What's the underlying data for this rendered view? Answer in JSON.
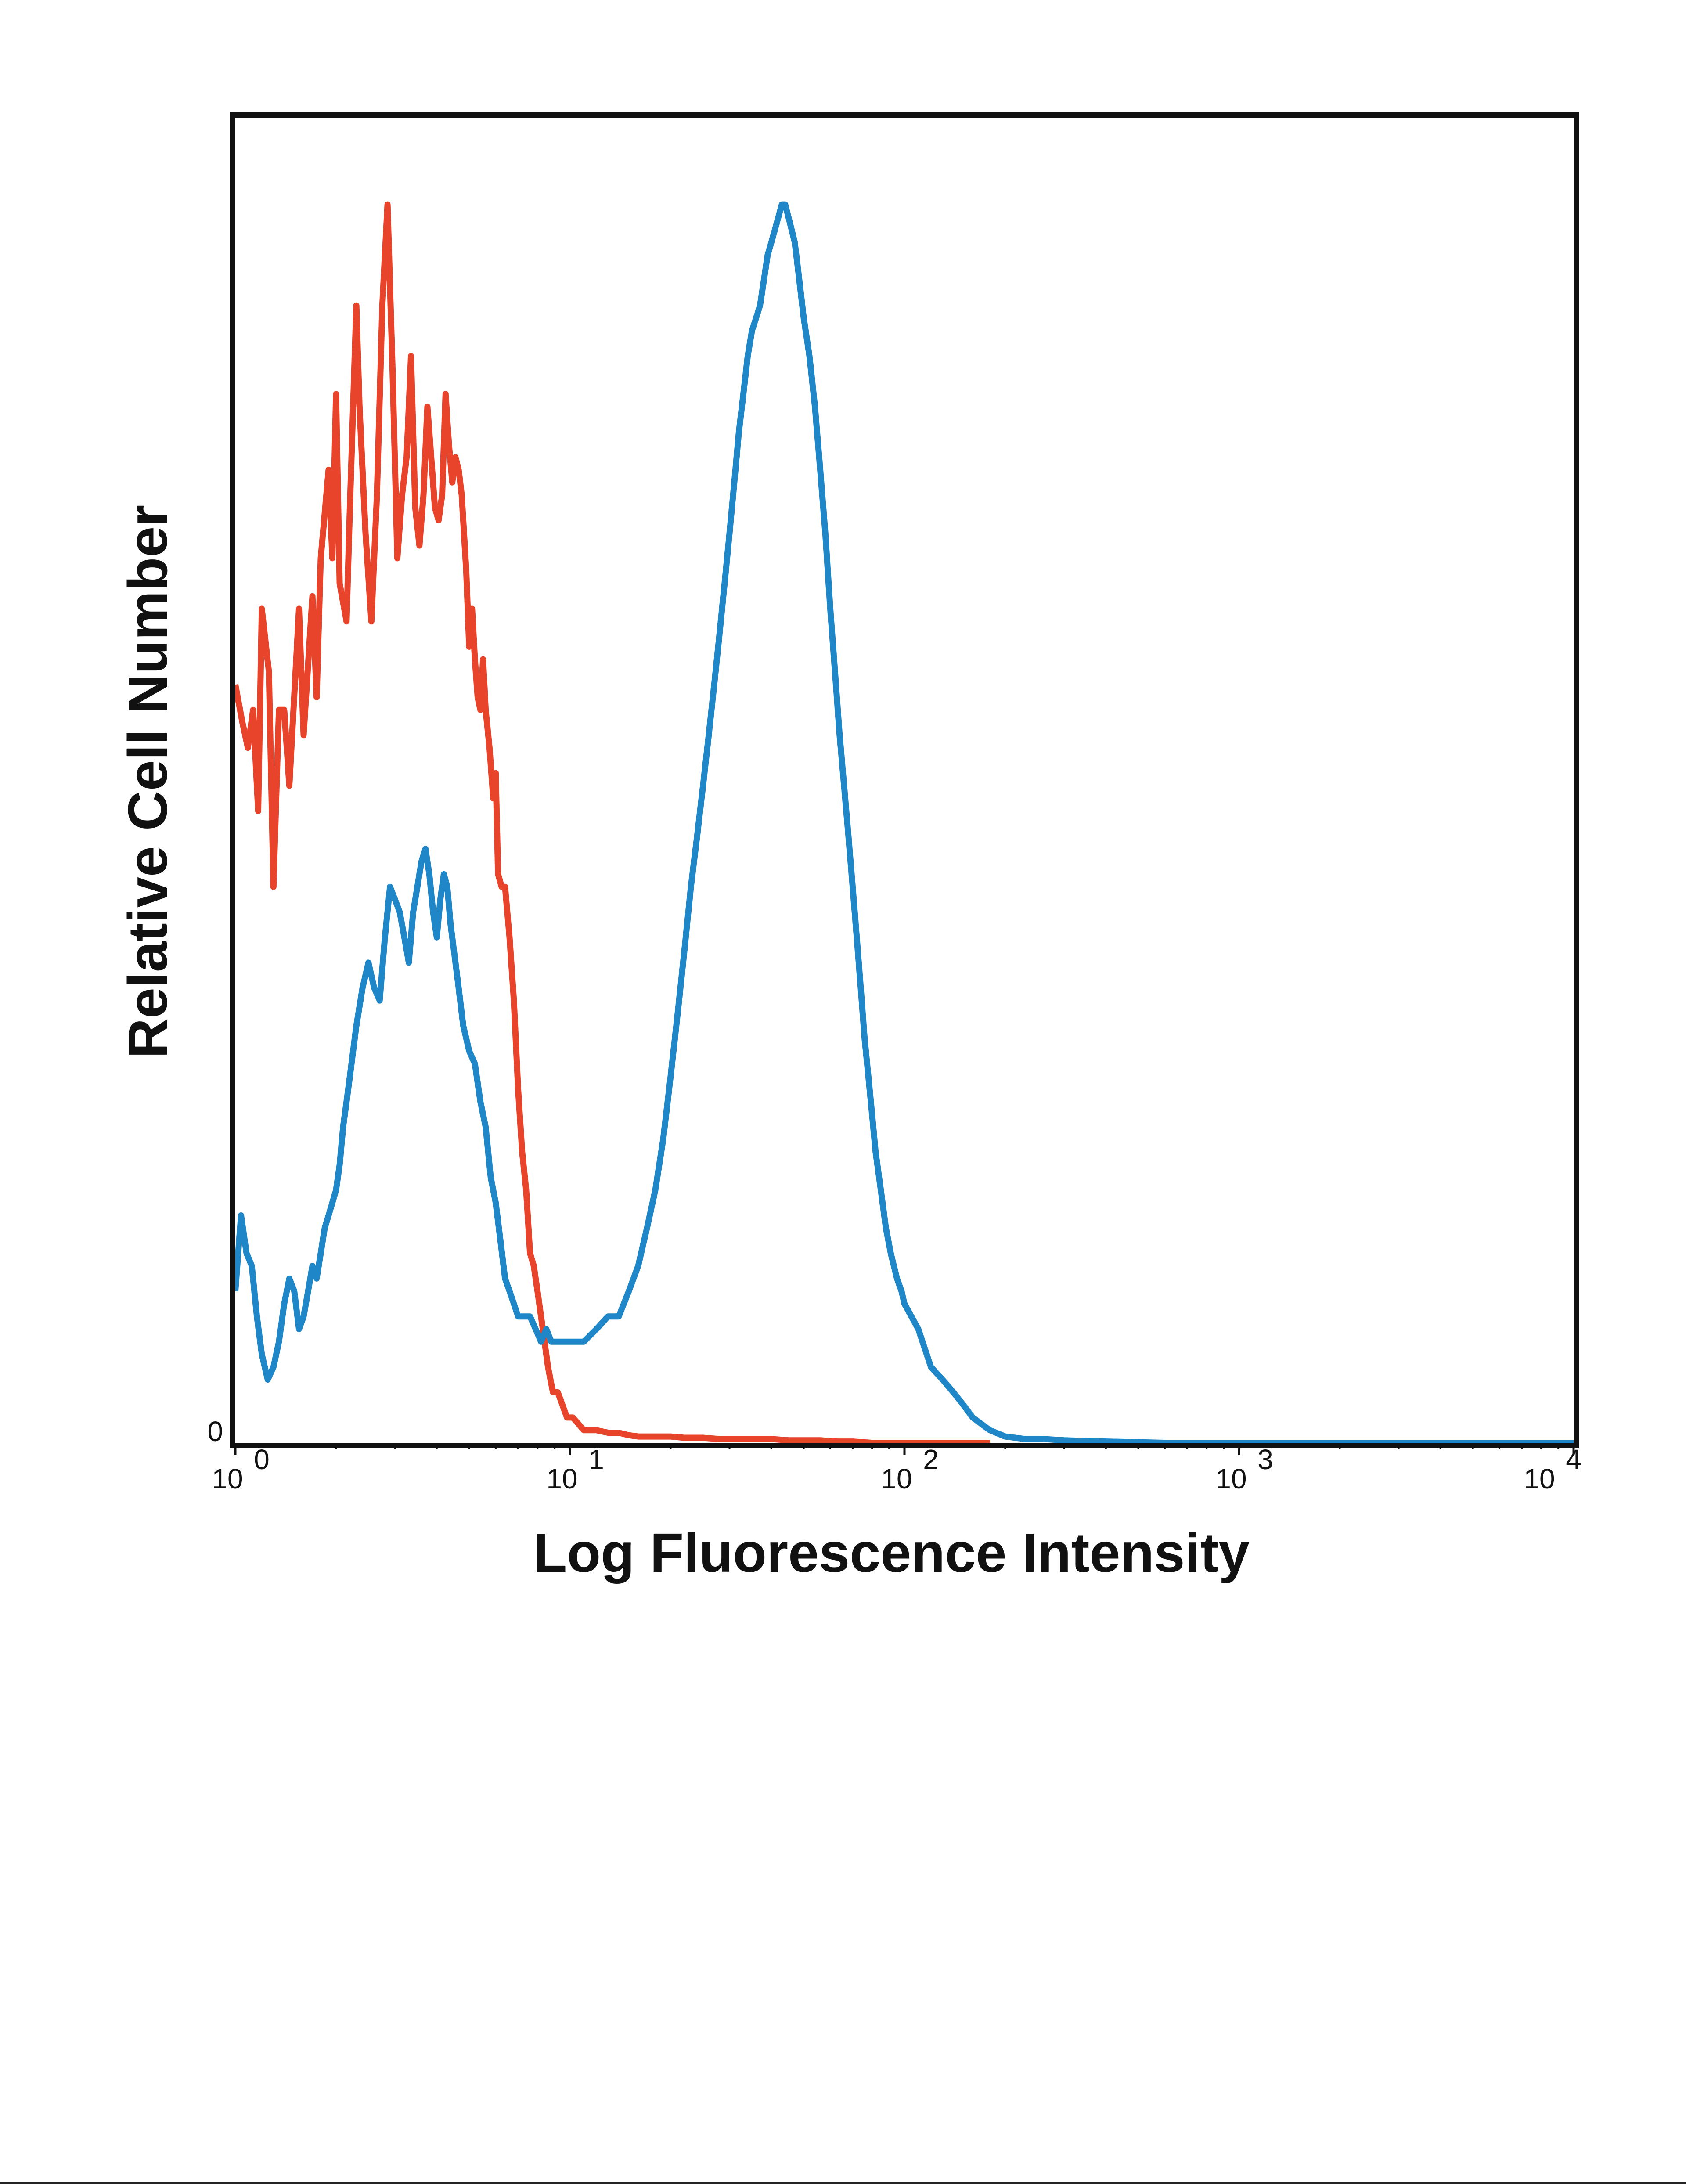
{
  "chart_data": {
    "type": "line",
    "title": "",
    "xlabel": "Log Fluorescence Intensity",
    "ylabel": "Relative Cell Number",
    "x_scale": "log",
    "xlim": [
      1,
      10000
    ],
    "ylim": [
      0,
      100
    ],
    "grid": false,
    "legend": "none",
    "x_ticks": [
      {
        "base": "10",
        "exp": "0",
        "value": 1
      },
      {
        "base": "10",
        "exp": "1",
        "value": 10
      },
      {
        "base": "10",
        "exp": "2",
        "value": 100
      },
      {
        "base": "10",
        "exp": "3",
        "value": 1000
      },
      {
        "base": "10",
        "exp": "4",
        "value": 10000
      }
    ],
    "y_ticks": [
      {
        "label": "0",
        "value": 0
      }
    ],
    "series": [
      {
        "color": "#e8442c",
        "points": [
          [
            1.0,
            60
          ],
          [
            1.05,
            57
          ],
          [
            1.09,
            55
          ],
          [
            1.13,
            58
          ],
          [
            1.17,
            50
          ],
          [
            1.2,
            66
          ],
          [
            1.26,
            61
          ],
          [
            1.3,
            44
          ],
          [
            1.35,
            58
          ],
          [
            1.4,
            58
          ],
          [
            1.45,
            52
          ],
          [
            1.55,
            66
          ],
          [
            1.6,
            56
          ],
          [
            1.7,
            67
          ],
          [
            1.75,
            59
          ],
          [
            1.8,
            70
          ],
          [
            1.9,
            77
          ],
          [
            1.95,
            70
          ],
          [
            2.0,
            83
          ],
          [
            2.05,
            68
          ],
          [
            2.15,
            65
          ],
          [
            2.2,
            74
          ],
          [
            2.3,
            90
          ],
          [
            2.35,
            82
          ],
          [
            2.45,
            72
          ],
          [
            2.55,
            65
          ],
          [
            2.65,
            75
          ],
          [
            2.75,
            90
          ],
          [
            2.85,
            98
          ],
          [
            2.95,
            85
          ],
          [
            3.05,
            70
          ],
          [
            3.15,
            75
          ],
          [
            3.25,
            78
          ],
          [
            3.35,
            86
          ],
          [
            3.45,
            74
          ],
          [
            3.55,
            71
          ],
          [
            3.65,
            75
          ],
          [
            3.75,
            82
          ],
          [
            3.85,
            78
          ],
          [
            3.95,
            74
          ],
          [
            4.05,
            73
          ],
          [
            4.15,
            75
          ],
          [
            4.25,
            83
          ],
          [
            4.35,
            79
          ],
          [
            4.45,
            76
          ],
          [
            4.55,
            78
          ],
          [
            4.65,
            77
          ],
          [
            4.75,
            75
          ],
          [
            4.9,
            69
          ],
          [
            5.0,
            63
          ],
          [
            5.1,
            66
          ],
          [
            5.2,
            62
          ],
          [
            5.3,
            59
          ],
          [
            5.4,
            58
          ],
          [
            5.5,
            62
          ],
          [
            5.6,
            58
          ],
          [
            5.75,
            55
          ],
          [
            5.9,
            51
          ],
          [
            6.0,
            53
          ],
          [
            6.1,
            45
          ],
          [
            6.25,
            44
          ],
          [
            6.4,
            44
          ],
          [
            6.6,
            40
          ],
          [
            6.8,
            35
          ],
          [
            7.0,
            28
          ],
          [
            7.2,
            23
          ],
          [
            7.4,
            20
          ],
          [
            7.6,
            15
          ],
          [
            7.8,
            14
          ],
          [
            8.0,
            12
          ],
          [
            8.3,
            9
          ],
          [
            8.6,
            6
          ],
          [
            8.9,
            4
          ],
          [
            9.2,
            4
          ],
          [
            9.5,
            3
          ],
          [
            9.8,
            2
          ],
          [
            10.2,
            2
          ],
          [
            10.6,
            1.5
          ],
          [
            11,
            1
          ],
          [
            12,
            1
          ],
          [
            13,
            0.8
          ],
          [
            14,
            0.8
          ],
          [
            15,
            0.6
          ],
          [
            16,
            0.5
          ],
          [
            18,
            0.5
          ],
          [
            20,
            0.5
          ],
          [
            22,
            0.4
          ],
          [
            25,
            0.4
          ],
          [
            28,
            0.3
          ],
          [
            32,
            0.3
          ],
          [
            36,
            0.3
          ],
          [
            40,
            0.3
          ],
          [
            45,
            0.2
          ],
          [
            50,
            0.2
          ],
          [
            56,
            0.2
          ],
          [
            63,
            0.1
          ],
          [
            70,
            0.1
          ],
          [
            80,
            0
          ],
          [
            90,
            0
          ],
          [
            100,
            0
          ],
          [
            130,
            0
          ],
          [
            180,
            0
          ]
        ]
      },
      {
        "color": "#1f86c8",
        "points": [
          [
            1.0,
            12
          ],
          [
            1.04,
            18
          ],
          [
            1.08,
            15
          ],
          [
            1.12,
            14
          ],
          [
            1.16,
            10
          ],
          [
            1.2,
            7
          ],
          [
            1.25,
            5
          ],
          [
            1.3,
            6
          ],
          [
            1.35,
            8
          ],
          [
            1.4,
            11
          ],
          [
            1.45,
            13
          ],
          [
            1.5,
            12
          ],
          [
            1.55,
            9
          ],
          [
            1.6,
            10
          ],
          [
            1.65,
            12
          ],
          [
            1.7,
            14
          ],
          [
            1.75,
            13
          ],
          [
            1.8,
            15
          ],
          [
            1.85,
            17
          ],
          [
            1.9,
            18
          ],
          [
            2.0,
            20
          ],
          [
            2.05,
            22
          ],
          [
            2.1,
            25
          ],
          [
            2.15,
            27
          ],
          [
            2.2,
            29
          ],
          [
            2.3,
            33
          ],
          [
            2.4,
            36
          ],
          [
            2.5,
            38
          ],
          [
            2.6,
            36
          ],
          [
            2.7,
            35
          ],
          [
            2.8,
            40
          ],
          [
            2.9,
            44
          ],
          [
            3.0,
            43
          ],
          [
            3.1,
            42
          ],
          [
            3.2,
            40
          ],
          [
            3.3,
            38
          ],
          [
            3.4,
            42
          ],
          [
            3.5,
            44
          ],
          [
            3.6,
            46
          ],
          [
            3.7,
            47
          ],
          [
            3.8,
            45
          ],
          [
            3.9,
            42
          ],
          [
            4.0,
            40
          ],
          [
            4.1,
            43
          ],
          [
            4.2,
            45
          ],
          [
            4.3,
            44
          ],
          [
            4.4,
            41
          ],
          [
            4.5,
            39
          ],
          [
            4.6,
            37
          ],
          [
            4.7,
            35
          ],
          [
            4.8,
            33
          ],
          [
            4.9,
            32
          ],
          [
            5.0,
            31
          ],
          [
            5.2,
            30
          ],
          [
            5.4,
            27
          ],
          [
            5.6,
            25
          ],
          [
            5.8,
            21
          ],
          [
            6.0,
            19
          ],
          [
            6.2,
            16
          ],
          [
            6.4,
            13
          ],
          [
            6.6,
            12
          ],
          [
            6.8,
            11
          ],
          [
            7.0,
            10
          ],
          [
            7.3,
            10
          ],
          [
            7.6,
            10
          ],
          [
            7.9,
            9
          ],
          [
            8.2,
            8
          ],
          [
            8.5,
            9
          ],
          [
            8.8,
            8
          ],
          [
            9.2,
            8
          ],
          [
            9.6,
            8
          ],
          [
            10,
            8
          ],
          [
            11,
            8
          ],
          [
            12,
            9
          ],
          [
            13,
            10
          ],
          [
            14,
            10
          ],
          [
            15,
            12
          ],
          [
            16,
            14
          ],
          [
            17,
            17
          ],
          [
            18,
            20
          ],
          [
            19,
            24
          ],
          [
            20,
            29
          ],
          [
            21,
            34
          ],
          [
            22,
            39
          ],
          [
            23,
            44
          ],
          [
            24,
            48
          ],
          [
            25,
            52
          ],
          [
            26,
            56
          ],
          [
            27,
            60
          ],
          [
            28,
            64
          ],
          [
            29,
            68
          ],
          [
            30,
            72
          ],
          [
            31,
            76
          ],
          [
            32,
            80
          ],
          [
            33,
            83
          ],
          [
            34,
            86
          ],
          [
            35,
            88
          ],
          [
            36,
            89
          ],
          [
            37,
            90
          ],
          [
            38,
            92
          ],
          [
            39,
            94
          ],
          [
            40,
            95
          ],
          [
            41,
            96
          ],
          [
            42,
            97
          ],
          [
            43,
            98
          ],
          [
            44,
            98
          ],
          [
            45,
            97
          ],
          [
            46,
            96
          ],
          [
            47,
            95
          ],
          [
            48,
            93
          ],
          [
            49,
            91
          ],
          [
            50,
            89
          ],
          [
            52,
            86
          ],
          [
            54,
            82
          ],
          [
            56,
            77
          ],
          [
            58,
            72
          ],
          [
            60,
            66
          ],
          [
            62,
            61
          ],
          [
            64,
            56
          ],
          [
            66,
            52
          ],
          [
            68,
            48
          ],
          [
            70,
            44
          ],
          [
            72,
            40
          ],
          [
            74,
            36
          ],
          [
            76,
            32
          ],
          [
            78,
            29
          ],
          [
            80,
            26
          ],
          [
            82,
            23
          ],
          [
            85,
            20
          ],
          [
            88,
            17
          ],
          [
            91,
            15
          ],
          [
            95,
            13
          ],
          [
            98,
            12
          ],
          [
            100,
            11
          ],
          [
            110,
            9
          ],
          [
            120,
            6
          ],
          [
            130,
            5
          ],
          [
            140,
            4
          ],
          [
            150,
            3
          ],
          [
            160,
            2
          ],
          [
            180,
            1
          ],
          [
            200,
            0.5
          ],
          [
            230,
            0.3
          ],
          [
            260,
            0.3
          ],
          [
            300,
            0.2
          ],
          [
            400,
            0.1
          ],
          [
            600,
            0
          ],
          [
            1000,
            0
          ],
          [
            3000,
            0
          ],
          [
            10000,
            0
          ]
        ]
      }
    ]
  }
}
